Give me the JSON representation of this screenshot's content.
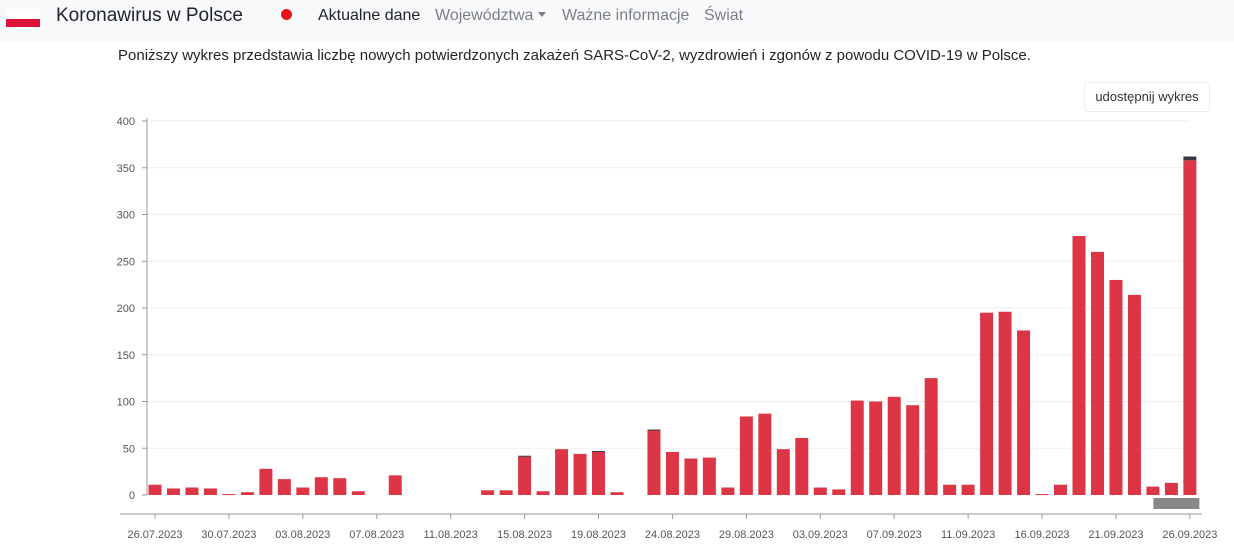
{
  "navbar": {
    "brand": "Koronawirus w Polsce",
    "links": [
      "Aktualne dane",
      "Województwa",
      "Ważne informacje",
      "Świat"
    ]
  },
  "description": "Poniższy wykres przedstawia liczbę nowych potwierdzonych zakażeń SARS-CoV-2, wyzdrowień i zgonów z powodu COVID-19 w Polsce.",
  "share_label": "udostępnij wykres",
  "colors": {
    "infections": "#dc3545",
    "deaths": "#343a40",
    "scroll_thumb": "#888888"
  },
  "chart_data": {
    "type": "bar",
    "stacked": true,
    "ylim": [
      0,
      400
    ],
    "yticks": [
      0,
      50,
      100,
      150,
      200,
      250,
      300,
      350,
      400
    ],
    "xtick_labels": [
      "26.07.2023",
      "30.07.2023",
      "03.08.2023",
      "07.08.2023",
      "11.08.2023",
      "15.08.2023",
      "19.08.2023",
      "24.08.2023",
      "29.08.2023",
      "03.09.2023",
      "07.09.2023",
      "11.09.2023",
      "16.09.2023",
      "21.09.2023",
      "26.09.2023"
    ],
    "grid": true,
    "series": [
      {
        "color": "#dc3545",
        "values": [
          11,
          7,
          8,
          7,
          1,
          3,
          28,
          17,
          8,
          19,
          18,
          4,
          0,
          21,
          0,
          0,
          0,
          0,
          5,
          5,
          41,
          4,
          49,
          44,
          46,
          3,
          0,
          69,
          46,
          39,
          40,
          8,
          84,
          87,
          49,
          61,
          8,
          6,
          101,
          100,
          105,
          96,
          125,
          11,
          11,
          195,
          196,
          176,
          1,
          11,
          277,
          260,
          230,
          214,
          9,
          13,
          358
        ]
      },
      {
        "color": "#343a40",
        "values": [
          0,
          0,
          0,
          0,
          0,
          0,
          0,
          0,
          0,
          0,
          0,
          0,
          0,
          0,
          0,
          0,
          0,
          0,
          0,
          0,
          1,
          0,
          0,
          0,
          1,
          0,
          0,
          1,
          0,
          0,
          0,
          0,
          0,
          0,
          0,
          0,
          0,
          0,
          0,
          0,
          0,
          0,
          0,
          0,
          0,
          0,
          0,
          0,
          0,
          0,
          0,
          0,
          0,
          0,
          0,
          0,
          4
        ]
      }
    ]
  }
}
